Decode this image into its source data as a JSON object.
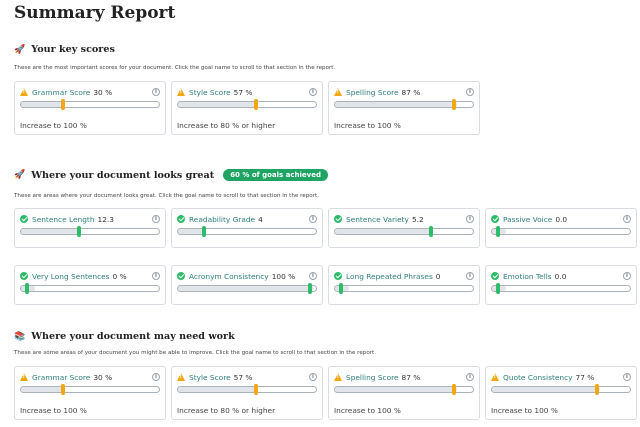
{
  "title": "Summary Report",
  "sections": [
    {
      "emoji": "🚀",
      "heading": "Your key scores",
      "badge": "",
      "description": "These are the most important scores for your document. Click the goal name to scroll to that section in the report.",
      "cards": [
        {
          "status": "warn",
          "name": "Grammar Score",
          "score": "30 %",
          "level": 0.3,
          "target": "Increase to 100 %"
        },
        {
          "status": "warn",
          "name": "Style Score",
          "score": "57 %",
          "level": 0.57,
          "target": "Increase to 80 % or higher"
        },
        {
          "status": "warn",
          "name": "Spelling Score",
          "score": "87 %",
          "level": 0.87,
          "target": "Increase to 100 %"
        }
      ]
    },
    {
      "emoji": "🚀",
      "heading": "Where your document looks great",
      "badge": "60 % of goals achieved",
      "description": "These are areas where your document looks great. Click the goal name to scroll to that section in the report.",
      "cards": [
        {
          "status": "ok",
          "name": "Sentence Length",
          "score": "12.3",
          "level": 0.42
        },
        {
          "status": "ok",
          "name": "Readability Grade",
          "score": "4",
          "level": 0.18
        },
        {
          "status": "ok",
          "name": "Sentence Variety",
          "score": "5.2",
          "level": 0.7
        },
        {
          "status": "ok",
          "name": "Passive Voice",
          "score": "0.0",
          "level": 0.03
        },
        {
          "status": "ok",
          "name": "Very Long Sentences",
          "score": "0 %",
          "level": 0.03
        },
        {
          "status": "ok",
          "name": "Acronym Consistency",
          "score": "100 %",
          "level": 0.97
        },
        {
          "status": "ok",
          "name": "Long Repeated Phrases",
          "score": "0",
          "level": 0.03
        },
        {
          "status": "ok",
          "name": "Emotion Tells",
          "score": "0.0",
          "level": 0.03
        }
      ]
    },
    {
      "emoji": "📚",
      "heading": "Where your document may need work",
      "badge": "",
      "description": "These are some areas of your document you might be able to improve. Click the goal name to scroll to that section in the report.",
      "cards": [
        {
          "status": "warn",
          "name": "Grammar Score",
          "score": "30 %",
          "level": 0.3,
          "target": "Increase to 100 %"
        },
        {
          "status": "warn",
          "name": "Style Score",
          "score": "57 %",
          "level": 0.57,
          "target": "Increase to 80 % or higher"
        },
        {
          "status": "warn",
          "name": "Spelling Score",
          "score": "87 %",
          "level": 0.87,
          "target": "Increase to 100 %"
        },
        {
          "status": "warn",
          "name": "Quote Consistency",
          "score": "77 %",
          "level": 0.77,
          "target": "Increase to 100 %"
        }
      ]
    }
  ],
  "colors": {
    "warning": "#f3a712",
    "success": "#2ebc6a",
    "link": "#2c7f7a",
    "badge": "#1fa463"
  },
  "icons": {
    "info": "info-icon",
    "warn": "warning-icon",
    "ok": "check-circle-icon"
  }
}
